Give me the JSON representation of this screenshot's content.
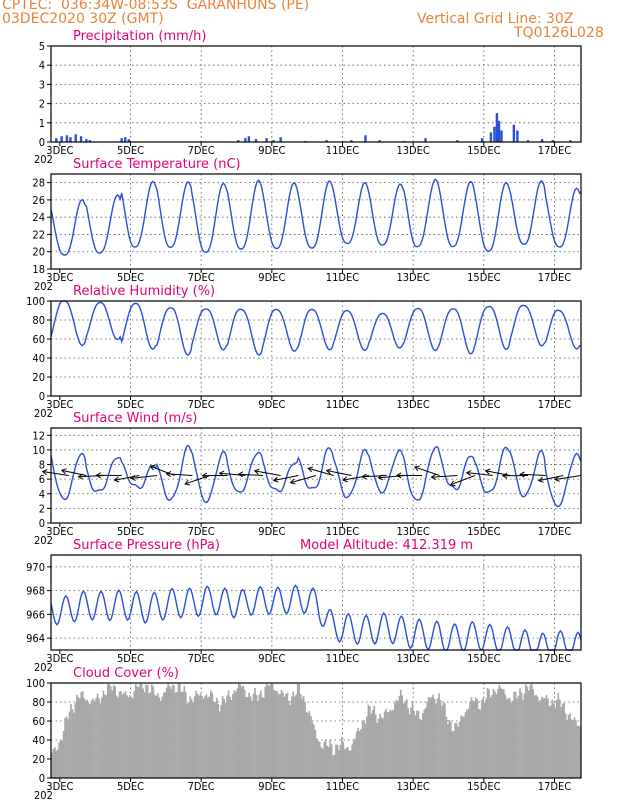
{
  "header": {
    "line1_left": "CPTEC:  036:34W-08:53S  GARANHUNS (PE)",
    "line2_left": "03DEC2020 30Z (GMT)",
    "line1_right": "Vertical Grid Line: 30Z",
    "line2_right": "TQ0126L028"
  },
  "colors": {
    "header": "#e8833a",
    "title": "#e0007a",
    "line": "#2a4fd6",
    "cloud": "#a8a8a8"
  },
  "x_axis": {
    "labels": [
      "3DEC",
      "5DEC",
      "7DEC",
      "9DEC",
      "11DEC",
      "13DEC",
      "15DEC",
      "17DEC"
    ],
    "first_label_suffix": "202"
  },
  "chart_data": [
    {
      "id": "precip",
      "type": "bar",
      "title": "Precipitation (mm/h)",
      "ylim": [
        0,
        5
      ],
      "yticks": [
        0,
        1,
        2,
        3,
        4,
        5
      ],
      "x": "hours since 3DEC 06Z (hourly)",
      "spikes": [
        {
          "day": 3.15,
          "v": 0.2
        },
        {
          "day": 3.3,
          "v": 0.3
        },
        {
          "day": 3.45,
          "v": 0.35
        },
        {
          "day": 3.55,
          "v": 0.25
        },
        {
          "day": 3.7,
          "v": 0.4
        },
        {
          "day": 3.85,
          "v": 0.3
        },
        {
          "day": 4.0,
          "v": 0.15
        },
        {
          "day": 4.1,
          "v": 0.1
        },
        {
          "day": 5.0,
          "v": 0.2
        },
        {
          "day": 5.1,
          "v": 0.25
        },
        {
          "day": 5.2,
          "v": 0.15
        },
        {
          "day": 8.3,
          "v": 0.1
        },
        {
          "day": 8.5,
          "v": 0.2
        },
        {
          "day": 8.6,
          "v": 0.3
        },
        {
          "day": 8.8,
          "v": 0.15
        },
        {
          "day": 9.1,
          "v": 0.2
        },
        {
          "day": 9.3,
          "v": 0.1
        },
        {
          "day": 9.5,
          "v": 0.25
        },
        {
          "day": 10.2,
          "v": 0.05
        },
        {
          "day": 10.8,
          "v": 0.1
        },
        {
          "day": 11.5,
          "v": 0.1
        },
        {
          "day": 11.9,
          "v": 0.35
        },
        {
          "day": 12.3,
          "v": 0.1
        },
        {
          "day": 13.0,
          "v": 0.05
        },
        {
          "day": 13.6,
          "v": 0.2
        },
        {
          "day": 14.5,
          "v": 0.1
        },
        {
          "day": 15.2,
          "v": 0.2
        },
        {
          "day": 15.45,
          "v": 0.5
        },
        {
          "day": 15.55,
          "v": 0.8
        },
        {
          "day": 15.62,
          "v": 1.5
        },
        {
          "day": 15.68,
          "v": 1.1
        },
        {
          "day": 15.75,
          "v": 0.6
        },
        {
          "day": 16.1,
          "v": 0.9
        },
        {
          "day": 16.2,
          "v": 0.6
        },
        {
          "day": 16.5,
          "v": 0.1
        },
        {
          "day": 16.9,
          "v": 0.15
        },
        {
          "day": 17.2,
          "v": 0.1
        },
        {
          "day": 17.7,
          "v": 0.1
        }
      ]
    },
    {
      "id": "temp",
      "type": "line",
      "title": "Surface Temperature (nC)",
      "ylim": [
        18,
        29
      ],
      "yticks": [
        18,
        20,
        22,
        24,
        26,
        28
      ],
      "daily": {
        "min": [
          19.5,
          20.0,
          20.5,
          20.5,
          20.0,
          20.2,
          20.5,
          20.5,
          20.8,
          20.8,
          20.5,
          20.6,
          20.3,
          20.8,
          20.5,
          20.5
        ],
        "max": [
          26.0,
          26.5,
          28.0,
          28.3,
          28.0,
          28.2,
          28.0,
          28.0,
          28.0,
          28.0,
          28.3,
          28.2,
          28.0,
          28.1,
          27.5,
          28.5
        ]
      }
    },
    {
      "id": "rh",
      "type": "line",
      "title": "Relative Humidity (%)",
      "ylim": [
        0,
        100
      ],
      "yticks": [
        0,
        20,
        40,
        60,
        80,
        100
      ],
      "daily": {
        "max": [
          100,
          98,
          96,
          95,
          92,
          90,
          92,
          90,
          90,
          88,
          90,
          92,
          95,
          95,
          92,
          92
        ],
        "min": [
          55,
          58,
          48,
          44,
          48,
          45,
          48,
          46,
          48,
          50,
          48,
          47,
          48,
          52,
          50,
          45
        ]
      }
    },
    {
      "id": "wind",
      "type": "line",
      "title": "Surface Wind (m/s)",
      "ylim": [
        0,
        13
      ],
      "yticks": [
        0,
        2,
        4,
        6,
        8,
        10,
        12
      ],
      "daily": {
        "max": [
          10.0,
          9.0,
          8.5,
          9.5,
          10.0,
          9.5,
          9.0,
          10.0,
          9.5,
          10.0,
          10.5,
          10.0,
          9.5,
          10.0,
          9.0,
          9.5
        ],
        "min": [
          3.0,
          4.5,
          4.5,
          3.5,
          3.5,
          4.0,
          4.5,
          4.0,
          4.5,
          4.0,
          3.5,
          4.0,
          4.5,
          4.0,
          2.5,
          2.0
        ]
      }
    },
    {
      "id": "pres",
      "type": "line",
      "title": "Surface Pressure (hPa)",
      "extra_label": "Model Altitude: 412.319 m",
      "ylim": [
        963,
        971
      ],
      "yticks": [
        964,
        966,
        968,
        970
      ],
      "trend": [
        [
          3,
          966.5
        ],
        [
          6,
          966.8
        ],
        [
          9,
          967.2
        ],
        [
          10.5,
          967.0
        ],
        [
          11,
          965.0
        ],
        [
          13,
          964.5
        ],
        [
          15,
          964.0
        ],
        [
          18,
          963.2
        ]
      ],
      "amplitude": 1.2
    },
    {
      "id": "cloud",
      "type": "bar",
      "title": "Cloud Cover (%)",
      "ylim": [
        0,
        100
      ],
      "yticks": [
        0,
        20,
        40,
        60,
        80,
        100
      ],
      "profile": [
        [
          3,
          20
        ],
        [
          3.5,
          70
        ],
        [
          4,
          85
        ],
        [
          5,
          92
        ],
        [
          6,
          93
        ],
        [
          7,
          90
        ],
        [
          7.5,
          80
        ],
        [
          8,
          88
        ],
        [
          9,
          92
        ],
        [
          10,
          90
        ],
        [
          10.5,
          50
        ],
        [
          11,
          25
        ],
        [
          11.5,
          40
        ],
        [
          12,
          65
        ],
        [
          13,
          80
        ],
        [
          13.5,
          70
        ],
        [
          14,
          85
        ],
        [
          14.5,
          50
        ],
        [
          15,
          85
        ],
        [
          16,
          90
        ],
        [
          17,
          88
        ],
        [
          17.5,
          70
        ],
        [
          18,
          60
        ]
      ]
    }
  ]
}
